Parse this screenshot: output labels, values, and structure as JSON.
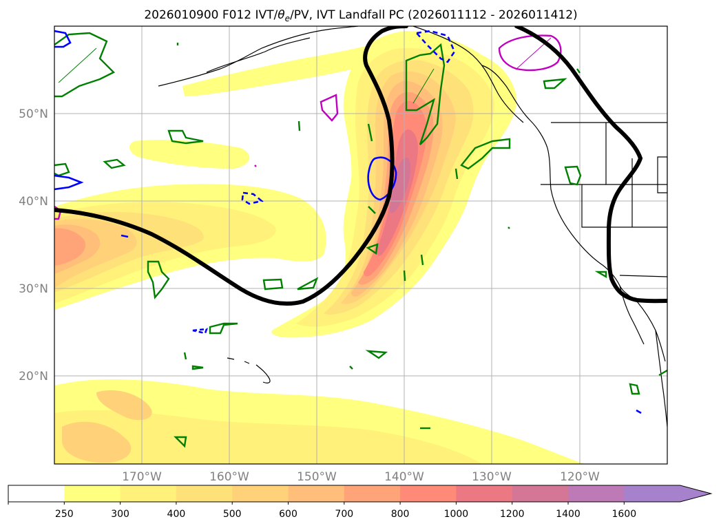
{
  "chart_data": {
    "type": "contour-map",
    "title": "2026010900 F012 IVT/",
    "title_theta": "θ",
    "title_sub": "e",
    "title_rest": "/PV, IVT Landfall PC (2026011112 - 2026011412)",
    "lat_ticks": [
      {
        "value": 50,
        "label": "50°N"
      },
      {
        "value": 40,
        "label": "40°N"
      },
      {
        "value": 30,
        "label": "30°N"
      },
      {
        "value": 20,
        "label": "20°N"
      }
    ],
    "lon_ticks": [
      {
        "value": -170,
        "label": "170°W"
      },
      {
        "value": -160,
        "label": "160°W"
      },
      {
        "value": -150,
        "label": "150°W"
      },
      {
        "value": -140,
        "label": "140°W"
      },
      {
        "value": -130,
        "label": "130°W"
      },
      {
        "value": -120,
        "label": "120°W"
      }
    ],
    "lon_range": [
      -180,
      -110
    ],
    "lat_range": [
      10,
      60
    ],
    "colorbar": {
      "levels": [
        250,
        300,
        400,
        500,
        600,
        700,
        800,
        1000,
        1200,
        1400,
        1600
      ],
      "labels": [
        "250",
        "300",
        "400",
        "500",
        "600",
        "700",
        "800",
        "1000",
        "1200",
        "1400",
        "1600"
      ],
      "colors": [
        "#ffffff",
        "#ffff80",
        "#fff17a",
        "#ffe17a",
        "#ffd27a",
        "#ffbe79",
        "#ffa478",
        "#ff8a78",
        "#ec7884",
        "#d47797",
        "#bd7ab7",
        "#a681cc"
      ],
      "extend": "max"
    }
  }
}
